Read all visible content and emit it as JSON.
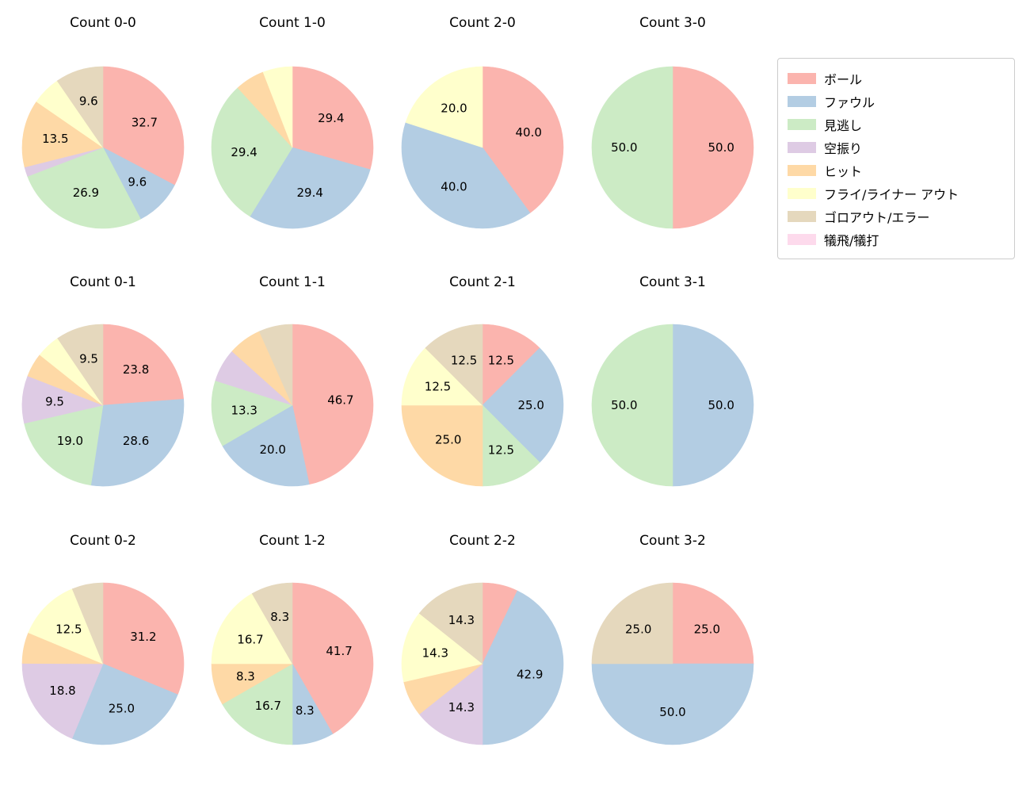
{
  "figure": {
    "background": "#ffffff"
  },
  "legend": {
    "items": [
      {
        "label": "ボール",
        "color": "#fbb4ae"
      },
      {
        "label": "ファウル",
        "color": "#b3cde3"
      },
      {
        "label": "見逃し",
        "color": "#ccebc5"
      },
      {
        "label": "空振り",
        "color": "#decbe4"
      },
      {
        "label": "ヒット",
        "color": "#fed9a6"
      },
      {
        "label": "フライ/ライナー アウト",
        "color": "#ffffcc"
      },
      {
        "label": "ゴロアウト/エラー",
        "color": "#e5d8bd"
      },
      {
        "label": "犠飛/犠打",
        "color": "#fddaec"
      }
    ]
  },
  "chart_data": [
    {
      "type": "pie",
      "title": "Count 0-0",
      "grid": {
        "row": 0,
        "col": 0
      },
      "slices": [
        {
          "category": "ボール",
          "value": 32.7,
          "label": "32.7"
        },
        {
          "category": "ファウル",
          "value": 9.6,
          "label": "9.6"
        },
        {
          "category": "見逃し",
          "value": 26.9,
          "label": "26.9"
        },
        {
          "category": "空振り",
          "value": 1.9,
          "label": ""
        },
        {
          "category": "ヒット",
          "value": 13.5,
          "label": "13.5"
        },
        {
          "category": "フライ/ライナー アウト",
          "value": 5.8,
          "label": ""
        },
        {
          "category": "ゴロアウト/エラー",
          "value": 9.6,
          "label": "9.6"
        }
      ]
    },
    {
      "type": "pie",
      "title": "Count 1-0",
      "grid": {
        "row": 0,
        "col": 1
      },
      "slices": [
        {
          "category": "ボール",
          "value": 29.4,
          "label": "29.4"
        },
        {
          "category": "ファウル",
          "value": 29.4,
          "label": "29.4"
        },
        {
          "category": "見逃し",
          "value": 29.4,
          "label": "29.4"
        },
        {
          "category": "ヒット",
          "value": 5.9,
          "label": ""
        },
        {
          "category": "フライ/ライナー アウト",
          "value": 5.9,
          "label": ""
        }
      ]
    },
    {
      "type": "pie",
      "title": "Count 2-0",
      "grid": {
        "row": 0,
        "col": 2
      },
      "slices": [
        {
          "category": "ボール",
          "value": 40.0,
          "label": "40.0"
        },
        {
          "category": "ファウル",
          "value": 40.0,
          "label": "40.0"
        },
        {
          "category": "フライ/ライナー アウト",
          "value": 20.0,
          "label": "20.0"
        }
      ]
    },
    {
      "type": "pie",
      "title": "Count 3-0",
      "grid": {
        "row": 0,
        "col": 3
      },
      "slices": [
        {
          "category": "ボール",
          "value": 50.0,
          "label": "50.0"
        },
        {
          "category": "見逃し",
          "value": 50.0,
          "label": "50.0"
        }
      ]
    },
    {
      "type": "pie",
      "title": "Count 0-1",
      "grid": {
        "row": 1,
        "col": 0
      },
      "slices": [
        {
          "category": "ボール",
          "value": 23.8,
          "label": "23.8"
        },
        {
          "category": "ファウル",
          "value": 28.6,
          "label": "28.6"
        },
        {
          "category": "見逃し",
          "value": 19.0,
          "label": "19.0"
        },
        {
          "category": "空振り",
          "value": 9.5,
          "label": "9.5"
        },
        {
          "category": "ヒット",
          "value": 4.8,
          "label": ""
        },
        {
          "category": "フライ/ライナー アウト",
          "value": 4.8,
          "label": ""
        },
        {
          "category": "ゴロアウト/エラー",
          "value": 9.5,
          "label": "9.5"
        }
      ]
    },
    {
      "type": "pie",
      "title": "Count 1-1",
      "grid": {
        "row": 1,
        "col": 1
      },
      "slices": [
        {
          "category": "ボール",
          "value": 46.7,
          "label": "46.7"
        },
        {
          "category": "ファウル",
          "value": 20.0,
          "label": "20.0"
        },
        {
          "category": "見逃し",
          "value": 13.3,
          "label": "13.3"
        },
        {
          "category": "空振り",
          "value": 6.7,
          "label": ""
        },
        {
          "category": "ヒット",
          "value": 6.7,
          "label": ""
        },
        {
          "category": "ゴロアウト/エラー",
          "value": 6.7,
          "label": ""
        }
      ]
    },
    {
      "type": "pie",
      "title": "Count 2-1",
      "grid": {
        "row": 1,
        "col": 2
      },
      "slices": [
        {
          "category": "ボール",
          "value": 12.5,
          "label": "12.5"
        },
        {
          "category": "ファウル",
          "value": 25.0,
          "label": "25.0"
        },
        {
          "category": "見逃し",
          "value": 12.5,
          "label": "12.5"
        },
        {
          "category": "ヒット",
          "value": 25.0,
          "label": "25.0"
        },
        {
          "category": "フライ/ライナー アウト",
          "value": 12.5,
          "label": "12.5"
        },
        {
          "category": "ゴロアウト/エラー",
          "value": 12.5,
          "label": "12.5"
        }
      ]
    },
    {
      "type": "pie",
      "title": "Count 3-1",
      "grid": {
        "row": 1,
        "col": 3
      },
      "slices": [
        {
          "category": "ファウル",
          "value": 50.0,
          "label": "50.0"
        },
        {
          "category": "見逃し",
          "value": 50.0,
          "label": "50.0"
        }
      ]
    },
    {
      "type": "pie",
      "title": "Count 0-2",
      "grid": {
        "row": 2,
        "col": 0
      },
      "slices": [
        {
          "category": "ボール",
          "value": 31.2,
          "label": "31.2"
        },
        {
          "category": "ファウル",
          "value": 25.0,
          "label": "25.0"
        },
        {
          "category": "空振り",
          "value": 18.8,
          "label": "18.8"
        },
        {
          "category": "ヒット",
          "value": 6.2,
          "label": ""
        },
        {
          "category": "フライ/ライナー アウト",
          "value": 12.5,
          "label": "12.5"
        },
        {
          "category": "ゴロアウト/エラー",
          "value": 6.2,
          "label": ""
        }
      ]
    },
    {
      "type": "pie",
      "title": "Count 1-2",
      "grid": {
        "row": 2,
        "col": 1
      },
      "slices": [
        {
          "category": "ボール",
          "value": 41.7,
          "label": "41.7"
        },
        {
          "category": "ファウル",
          "value": 8.3,
          "label": "8.3"
        },
        {
          "category": "見逃し",
          "value": 16.7,
          "label": "16.7"
        },
        {
          "category": "ヒット",
          "value": 8.3,
          "label": "8.3"
        },
        {
          "category": "フライ/ライナー アウト",
          "value": 16.7,
          "label": "16.7"
        },
        {
          "category": "ゴロアウト/エラー",
          "value": 8.3,
          "label": "8.3"
        }
      ]
    },
    {
      "type": "pie",
      "title": "Count 2-2",
      "grid": {
        "row": 2,
        "col": 2
      },
      "slices": [
        {
          "category": "ボール",
          "value": 7.1,
          "label": ""
        },
        {
          "category": "ファウル",
          "value": 42.9,
          "label": "42.9"
        },
        {
          "category": "空振り",
          "value": 14.3,
          "label": "14.3"
        },
        {
          "category": "ヒット",
          "value": 7.1,
          "label": ""
        },
        {
          "category": "フライ/ライナー アウト",
          "value": 14.3,
          "label": "14.3"
        },
        {
          "category": "ゴロアウト/エラー",
          "value": 14.3,
          "label": "14.3"
        }
      ]
    },
    {
      "type": "pie",
      "title": "Count 3-2",
      "grid": {
        "row": 2,
        "col": 3
      },
      "slices": [
        {
          "category": "ボール",
          "value": 25.0,
          "label": "25.0"
        },
        {
          "category": "ファウル",
          "value": 50.0,
          "label": "50.0"
        },
        {
          "category": "ゴロアウト/エラー",
          "value": 25.0,
          "label": "25.0"
        }
      ]
    }
  ]
}
